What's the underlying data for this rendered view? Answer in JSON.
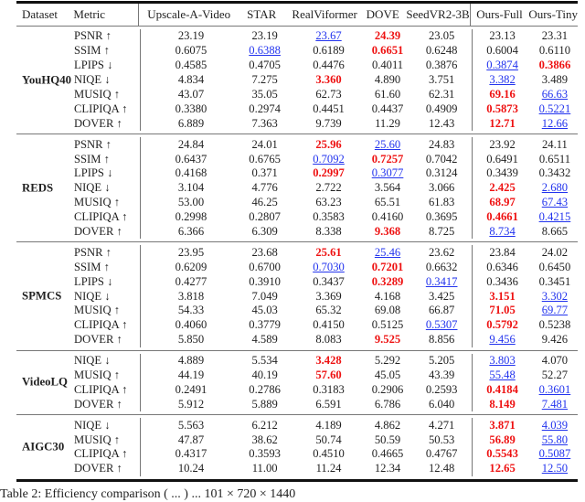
{
  "table": {
    "headers": [
      "Dataset",
      "Metric",
      "Upscale-A-Video",
      "STAR",
      "RealViformer",
      "DOVE",
      "SeedVR2-3B",
      "Ours-Full",
      "Ours-Tiny"
    ],
    "colors": {
      "best": "#ee1111",
      "second": "#2233ee"
    },
    "groups": [
      {
        "dataset": "YouHQ40",
        "rows": [
          {
            "metric": "PSNR ↑",
            "cells": [
              {
                "v": "23.19"
              },
              {
                "v": "23.19"
              },
              {
                "v": "23.67",
                "r": "second"
              },
              {
                "v": "24.39",
                "r": "best"
              },
              {
                "v": "23.05"
              },
              {
                "v": "23.13"
              },
              {
                "v": "23.31"
              }
            ]
          },
          {
            "metric": "SSIM ↑",
            "cells": [
              {
                "v": "0.6075"
              },
              {
                "v": "0.6388",
                "r": "second"
              },
              {
                "v": "0.6189"
              },
              {
                "v": "0.6651",
                "r": "best"
              },
              {
                "v": "0.6248"
              },
              {
                "v": "0.6004"
              },
              {
                "v": "0.6110"
              }
            ]
          },
          {
            "metric": "LPIPS ↓",
            "cells": [
              {
                "v": "0.4585"
              },
              {
                "v": "0.4705"
              },
              {
                "v": "0.4476"
              },
              {
                "v": "0.4011"
              },
              {
                "v": "0.3876"
              },
              {
                "v": "0.3874",
                "r": "second"
              },
              {
                "v": "0.3866",
                "r": "best"
              }
            ]
          },
          {
            "metric": "NIQE ↓",
            "cells": [
              {
                "v": "4.834"
              },
              {
                "v": "7.275"
              },
              {
                "v": "3.360",
                "r": "best"
              },
              {
                "v": "4.890"
              },
              {
                "v": "3.751"
              },
              {
                "v": "3.382",
                "r": "second"
              },
              {
                "v": "3.489"
              }
            ]
          },
          {
            "metric": "MUSIQ ↑",
            "cells": [
              {
                "v": "43.07"
              },
              {
                "v": "35.05"
              },
              {
                "v": "62.73"
              },
              {
                "v": "61.60"
              },
              {
                "v": "62.31"
              },
              {
                "v": "69.16",
                "r": "best"
              },
              {
                "v": "66.63",
                "r": "second"
              }
            ]
          },
          {
            "metric": "CLIPIQA ↑",
            "cells": [
              {
                "v": "0.3380"
              },
              {
                "v": "0.2974"
              },
              {
                "v": "0.4451"
              },
              {
                "v": "0.4437"
              },
              {
                "v": "0.4909"
              },
              {
                "v": "0.5873",
                "r": "best"
              },
              {
                "v": "0.5221",
                "r": "second"
              }
            ]
          },
          {
            "metric": "DOVER ↑",
            "cells": [
              {
                "v": "6.889"
              },
              {
                "v": "7.363"
              },
              {
                "v": "9.739"
              },
              {
                "v": "11.29"
              },
              {
                "v": "12.43"
              },
              {
                "v": "12.71",
                "r": "best"
              },
              {
                "v": "12.66",
                "r": "second"
              }
            ]
          }
        ]
      },
      {
        "dataset": "REDS",
        "rows": [
          {
            "metric": "PSNR ↑",
            "cells": [
              {
                "v": "24.84"
              },
              {
                "v": "24.01"
              },
              {
                "v": "25.96",
                "r": "best"
              },
              {
                "v": "25.60",
                "r": "second"
              },
              {
                "v": "24.83"
              },
              {
                "v": "23.92"
              },
              {
                "v": "24.11"
              }
            ]
          },
          {
            "metric": "SSIM ↑",
            "cells": [
              {
                "v": "0.6437"
              },
              {
                "v": "0.6765"
              },
              {
                "v": "0.7092",
                "r": "second"
              },
              {
                "v": "0.7257",
                "r": "best"
              },
              {
                "v": "0.7042"
              },
              {
                "v": "0.6491"
              },
              {
                "v": "0.6511"
              }
            ]
          },
          {
            "metric": "LPIPS ↓",
            "cells": [
              {
                "v": "0.4168"
              },
              {
                "v": "0.371"
              },
              {
                "v": "0.2997",
                "r": "best"
              },
              {
                "v": "0.3077",
                "r": "second"
              },
              {
                "v": "0.3124"
              },
              {
                "v": "0.3439"
              },
              {
                "v": "0.3432"
              }
            ]
          },
          {
            "metric": "NIQE ↓",
            "cells": [
              {
                "v": "3.104"
              },
              {
                "v": "4.776"
              },
              {
                "v": "2.722"
              },
              {
                "v": "3.564"
              },
              {
                "v": "3.066"
              },
              {
                "v": "2.425",
                "r": "best"
              },
              {
                "v": "2.680",
                "r": "second"
              }
            ]
          },
          {
            "metric": "MUSIQ ↑",
            "cells": [
              {
                "v": "53.00"
              },
              {
                "v": "46.25"
              },
              {
                "v": "63.23"
              },
              {
                "v": "65.51"
              },
              {
                "v": "61.83"
              },
              {
                "v": "68.97",
                "r": "best"
              },
              {
                "v": "67.43",
                "r": "second"
              }
            ]
          },
          {
            "metric": "CLIPIQA ↑",
            "cells": [
              {
                "v": "0.2998"
              },
              {
                "v": "0.2807"
              },
              {
                "v": "0.3583"
              },
              {
                "v": "0.4160"
              },
              {
                "v": "0.3695"
              },
              {
                "v": "0.4661",
                "r": "best"
              },
              {
                "v": "0.4215",
                "r": "second"
              }
            ]
          },
          {
            "metric": "DOVER ↑",
            "cells": [
              {
                "v": "6.366"
              },
              {
                "v": "6.309"
              },
              {
                "v": "8.338"
              },
              {
                "v": "9.368",
                "r": "best"
              },
              {
                "v": "8.725"
              },
              {
                "v": "8.734",
                "r": "second"
              },
              {
                "v": "8.665"
              }
            ]
          }
        ]
      },
      {
        "dataset": "SPMCS",
        "rows": [
          {
            "metric": "PSNR ↑",
            "cells": [
              {
                "v": "23.95"
              },
              {
                "v": "23.68"
              },
              {
                "v": "25.61",
                "r": "best"
              },
              {
                "v": "25.46",
                "r": "second"
              },
              {
                "v": "23.62"
              },
              {
                "v": "23.84"
              },
              {
                "v": "24.02"
              }
            ]
          },
          {
            "metric": "SSIM ↑",
            "cells": [
              {
                "v": "0.6209"
              },
              {
                "v": "0.6700"
              },
              {
                "v": "0.7030",
                "r": "second"
              },
              {
                "v": "0.7201",
                "r": "best"
              },
              {
                "v": "0.6632"
              },
              {
                "v": "0.6346"
              },
              {
                "v": "0.6450"
              }
            ]
          },
          {
            "metric": "LPIPS ↓",
            "cells": [
              {
                "v": "0.4277"
              },
              {
                "v": "0.3910"
              },
              {
                "v": "0.3437"
              },
              {
                "v": "0.3289",
                "r": "best"
              },
              {
                "v": "0.3417",
                "r": "second"
              },
              {
                "v": "0.3436"
              },
              {
                "v": "0.3451"
              }
            ]
          },
          {
            "metric": "NIQE ↓",
            "cells": [
              {
                "v": "3.818"
              },
              {
                "v": "7.049"
              },
              {
                "v": "3.369"
              },
              {
                "v": "4.168"
              },
              {
                "v": "3.425"
              },
              {
                "v": "3.151",
                "r": "best"
              },
              {
                "v": "3.302",
                "r": "second"
              }
            ]
          },
          {
            "metric": "MUSIQ ↑",
            "cells": [
              {
                "v": "54.33"
              },
              {
                "v": "45.03"
              },
              {
                "v": "65.32"
              },
              {
                "v": "69.08"
              },
              {
                "v": "66.87"
              },
              {
                "v": "71.05",
                "r": "best"
              },
              {
                "v": "69.77",
                "r": "second"
              }
            ]
          },
          {
            "metric": "CLIPIQA ↑",
            "cells": [
              {
                "v": "0.4060"
              },
              {
                "v": "0.3779"
              },
              {
                "v": "0.4150"
              },
              {
                "v": "0.5125"
              },
              {
                "v": "0.5307",
                "r": "second"
              },
              {
                "v": "0.5792",
                "r": "best"
              },
              {
                "v": "0.5238"
              }
            ]
          },
          {
            "metric": "DOVER ↑",
            "cells": [
              {
                "v": "5.850"
              },
              {
                "v": "4.589"
              },
              {
                "v": "8.083"
              },
              {
                "v": "9.525",
                "r": "best"
              },
              {
                "v": "8.856"
              },
              {
                "v": "9.456",
                "r": "second"
              },
              {
                "v": "9.426"
              }
            ]
          }
        ]
      },
      {
        "dataset": "VideoLQ",
        "rows": [
          {
            "metric": "NIQE ↓",
            "cells": [
              {
                "v": "4.889"
              },
              {
                "v": "5.534"
              },
              {
                "v": "3.428",
                "r": "best"
              },
              {
                "v": "5.292"
              },
              {
                "v": "5.205"
              },
              {
                "v": "3.803",
                "r": "second"
              },
              {
                "v": "4.070"
              }
            ]
          },
          {
            "metric": "MUSIQ ↑",
            "cells": [
              {
                "v": "44.19"
              },
              {
                "v": "40.19"
              },
              {
                "v": "57.60",
                "r": "best"
              },
              {
                "v": "45.05"
              },
              {
                "v": "43.39"
              },
              {
                "v": "55.48",
                "r": "second"
              },
              {
                "v": "52.27"
              }
            ]
          },
          {
            "metric": "CLIPIQA ↑",
            "cells": [
              {
                "v": "0.2491"
              },
              {
                "v": "0.2786"
              },
              {
                "v": "0.3183"
              },
              {
                "v": "0.2906"
              },
              {
                "v": "0.2593"
              },
              {
                "v": "0.4184",
                "r": "best"
              },
              {
                "v": "0.3601",
                "r": "second"
              }
            ]
          },
          {
            "metric": "DOVER ↑",
            "cells": [
              {
                "v": "5.912"
              },
              {
                "v": "5.889"
              },
              {
                "v": "6.591"
              },
              {
                "v": "6.786"
              },
              {
                "v": "6.040"
              },
              {
                "v": "8.149",
                "r": "best"
              },
              {
                "v": "7.481",
                "r": "second"
              }
            ]
          }
        ]
      },
      {
        "dataset": "AIGC30",
        "rows": [
          {
            "metric": "NIQE ↓",
            "cells": [
              {
                "v": "5.563"
              },
              {
                "v": "6.212"
              },
              {
                "v": "4.189"
              },
              {
                "v": "4.862"
              },
              {
                "v": "4.271"
              },
              {
                "v": "3.871",
                "r": "best"
              },
              {
                "v": "4.039",
                "r": "second"
              }
            ]
          },
          {
            "metric": "MUSIQ ↑",
            "cells": [
              {
                "v": "47.87"
              },
              {
                "v": "38.62"
              },
              {
                "v": "50.74"
              },
              {
                "v": "50.59"
              },
              {
                "v": "50.53"
              },
              {
                "v": "56.89",
                "r": "best"
              },
              {
                "v": "55.80",
                "r": "second"
              }
            ]
          },
          {
            "metric": "CLIPIQA ↑",
            "cells": [
              {
                "v": "0.4317"
              },
              {
                "v": "0.3593"
              },
              {
                "v": "0.4510"
              },
              {
                "v": "0.4665"
              },
              {
                "v": "0.4767"
              },
              {
                "v": "0.5543",
                "r": "best"
              },
              {
                "v": "0.5087",
                "r": "second"
              }
            ]
          },
          {
            "metric": "DOVER ↑",
            "cells": [
              {
                "v": "10.24"
              },
              {
                "v": "11.00"
              },
              {
                "v": "11.24"
              },
              {
                "v": "12.34"
              },
              {
                "v": "12.48"
              },
              {
                "v": "12.65",
                "r": "best"
              },
              {
                "v": "12.50",
                "r": "second"
              }
            ]
          }
        ]
      }
    ]
  },
  "caption": "Table 2: Efficiency comparison ( ... ) ... 101 × 720 × 1440"
}
